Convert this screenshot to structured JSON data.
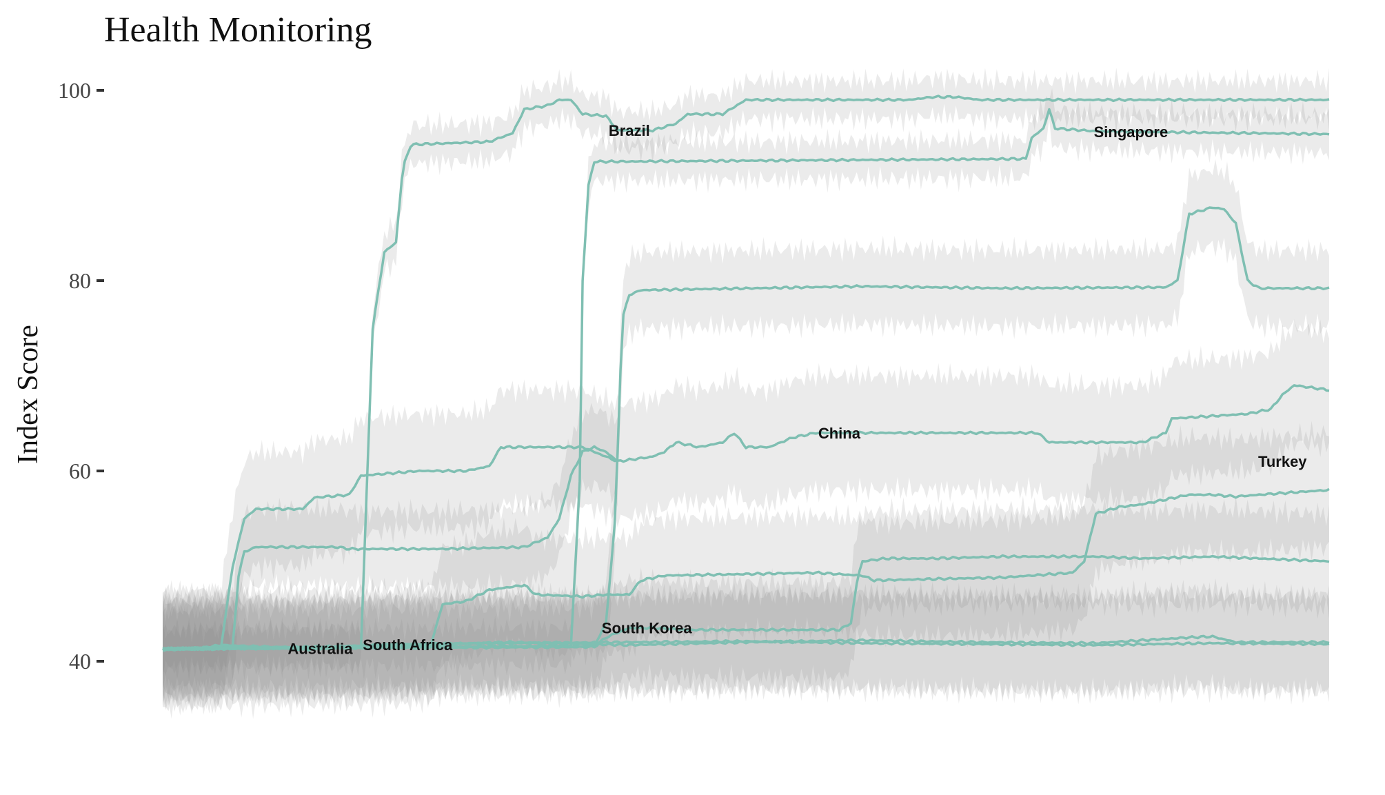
{
  "chart_data": {
    "type": "line",
    "title": "Health Monitoring",
    "ylabel": "Index Score",
    "xlabel": "",
    "ylim": [
      34,
      102
    ],
    "yticks": [
      40,
      60,
      80,
      100
    ],
    "grid": false,
    "line_color": "#7fbfb2",
    "band_color": "#8a8a8a",
    "x_range": [
      0,
      100
    ],
    "series": [
      {
        "name": "Brazil",
        "label_at": 40,
        "band": 2,
        "points": [
          [
            0,
            41.2
          ],
          [
            5,
            41.5
          ],
          [
            17,
            41.5
          ],
          [
            18,
            75
          ],
          [
            19,
            83
          ],
          [
            20,
            84
          ],
          [
            20.6,
            92
          ],
          [
            21.3,
            94.3
          ],
          [
            28,
            94.6
          ],
          [
            30,
            95.5
          ],
          [
            31,
            98
          ],
          [
            33,
            98.4
          ],
          [
            34,
            99
          ],
          [
            35,
            99
          ],
          [
            36,
            97.5
          ],
          [
            38,
            97.3
          ],
          [
            39,
            95.8
          ],
          [
            42,
            95.8
          ],
          [
            44,
            96.5
          ],
          [
            45,
            97.5
          ],
          [
            48,
            97.5
          ],
          [
            50,
            99
          ],
          [
            64,
            99
          ],
          [
            66,
            99.3
          ],
          [
            68,
            99.3
          ],
          [
            70,
            99
          ],
          [
            100,
            99
          ]
        ]
      },
      {
        "name": "Singapore",
        "label_at": 83,
        "band": 2,
        "points": [
          [
            0,
            41.3
          ],
          [
            35,
            41.6
          ],
          [
            35.5,
            53
          ],
          [
            35.8,
            60
          ],
          [
            36,
            80
          ],
          [
            36.5,
            90
          ],
          [
            37,
            92.5
          ],
          [
            74,
            92.8
          ],
          [
            74.5,
            95
          ],
          [
            75.5,
            96
          ],
          [
            76,
            98
          ],
          [
            76.5,
            96
          ],
          [
            80,
            95.7
          ],
          [
            100,
            95.4
          ]
        ]
      },
      {
        "name": "",
        "label_at": null,
        "band": 4,
        "points": [
          [
            0,
            41.3
          ],
          [
            37,
            41.6
          ],
          [
            38,
            44
          ],
          [
            38.8,
            55
          ],
          [
            39.4,
            76
          ],
          [
            40,
            78.5
          ],
          [
            41,
            79
          ],
          [
            60,
            79.4
          ],
          [
            72,
            79.2
          ],
          [
            86,
            79.3
          ],
          [
            87,
            80
          ],
          [
            88,
            87
          ],
          [
            90,
            87.7
          ],
          [
            91,
            87.5
          ],
          [
            92,
            86
          ],
          [
            93,
            80
          ],
          [
            94,
            79.2
          ],
          [
            100,
            79.2
          ]
        ]
      },
      {
        "name": "China",
        "label_at": 58,
        "band": 6,
        "points": [
          [
            0,
            41.3
          ],
          [
            5,
            41.5
          ],
          [
            6,
            50
          ],
          [
            7,
            55
          ],
          [
            8,
            56
          ],
          [
            12,
            56
          ],
          [
            13,
            57.2
          ],
          [
            16,
            57.5
          ],
          [
            17,
            59.5
          ],
          [
            22,
            60
          ],
          [
            26,
            60
          ],
          [
            28,
            60.5
          ],
          [
            29,
            62.5
          ],
          [
            36,
            62.5
          ],
          [
            38,
            61.5
          ],
          [
            39,
            61
          ],
          [
            42,
            61.5
          ],
          [
            43,
            62
          ],
          [
            44,
            63
          ],
          [
            46,
            62.5
          ],
          [
            48,
            63
          ],
          [
            49,
            64
          ],
          [
            50,
            62.5
          ],
          [
            52,
            62.5
          ],
          [
            54,
            63.5
          ],
          [
            56,
            64
          ],
          [
            64,
            64
          ],
          [
            70,
            64
          ],
          [
            75,
            64
          ],
          [
            76,
            63
          ],
          [
            84,
            63
          ],
          [
            86,
            64
          ],
          [
            86.5,
            65.5
          ],
          [
            93,
            66
          ],
          [
            95,
            66.5
          ],
          [
            96,
            68
          ],
          [
            97,
            69
          ],
          [
            100,
            68.5
          ]
        ]
      },
      {
        "name": "Turkey",
        "label_at": 96,
        "band": 4,
        "points": [
          [
            0,
            41.3
          ],
          [
            6,
            41.5
          ],
          [
            6.5,
            49
          ],
          [
            7,
            51.5
          ],
          [
            8,
            52
          ],
          [
            15,
            52
          ],
          [
            16,
            51.8
          ],
          [
            24,
            51.8
          ],
          [
            31,
            52
          ],
          [
            32,
            52.5
          ],
          [
            33,
            53
          ],
          [
            34,
            55
          ],
          [
            35,
            59.5
          ],
          [
            36,
            62
          ],
          [
            37,
            62.5
          ],
          [
            38,
            62
          ],
          [
            39,
            61
          ]
        ]
      },
      {
        "name": "",
        "label_at": null,
        "band": 6,
        "points": [
          [
            0,
            41.3
          ],
          [
            20,
            41.5
          ],
          [
            23,
            41.8
          ],
          [
            24,
            46
          ],
          [
            26,
            46.3
          ],
          [
            28,
            47.5
          ],
          [
            31,
            48
          ],
          [
            32,
            47
          ],
          [
            36,
            46.8
          ],
          [
            38,
            47
          ],
          [
            40,
            47
          ],
          [
            41,
            48.5
          ],
          [
            43,
            49
          ],
          [
            56,
            49.3
          ],
          [
            60,
            49
          ],
          [
            61,
            48.5
          ],
          [
            72,
            48.8
          ],
          [
            78,
            49.3
          ],
          [
            79,
            50.5
          ],
          [
            80,
            55.5
          ],
          [
            82,
            56.2
          ],
          [
            84,
            56.5
          ],
          [
            88,
            57.5
          ],
          [
            90,
            57.5
          ],
          [
            92,
            57.3
          ],
          [
            94,
            57.5
          ],
          [
            100,
            58
          ]
        ]
      },
      {
        "name": "South Korea",
        "label_at": 41.5,
        "band": 5,
        "points": [
          [
            0,
            41.3
          ],
          [
            37,
            41.5
          ],
          [
            38,
            42.5
          ],
          [
            39,
            43
          ],
          [
            40,
            43.5
          ],
          [
            42,
            43.5
          ],
          [
            45,
            43.3
          ],
          [
            50,
            43.3
          ],
          [
            58,
            43.3
          ],
          [
            59,
            44
          ],
          [
            59.6,
            49
          ],
          [
            60,
            50.5
          ],
          [
            62,
            50.8
          ],
          [
            66,
            50.8
          ],
          [
            72,
            51
          ],
          [
            80,
            51
          ],
          [
            84,
            50.8
          ],
          [
            90,
            51
          ],
          [
            100,
            50.5
          ]
        ]
      },
      {
        "name": "Australia",
        "label_at": 13.5,
        "band": 5,
        "points": [
          [
            0,
            41.3
          ],
          [
            3,
            41.3
          ],
          [
            5,
            41.7
          ],
          [
            9,
            41.5
          ],
          [
            12,
            41.2
          ],
          [
            16,
            41.6
          ],
          [
            20,
            41.8
          ],
          [
            30,
            41.9
          ],
          [
            40,
            42
          ],
          [
            50,
            42.1
          ],
          [
            60,
            41.9
          ],
          [
            70,
            41.8
          ],
          [
            80,
            41.7
          ],
          [
            90,
            41.9
          ],
          [
            100,
            41.8
          ]
        ]
      },
      {
        "name": "South Africa",
        "label_at": 21,
        "band": 5,
        "points": [
          [
            0,
            41.2
          ],
          [
            10,
            41.4
          ],
          [
            20,
            41.7
          ],
          [
            30,
            42
          ],
          [
            40,
            41.7
          ],
          [
            50,
            42
          ],
          [
            60,
            42.2
          ],
          [
            70,
            42
          ],
          [
            80,
            41.9
          ],
          [
            88,
            42.5
          ],
          [
            90,
            42.6
          ],
          [
            92,
            42
          ],
          [
            100,
            42
          ]
        ]
      }
    ]
  }
}
